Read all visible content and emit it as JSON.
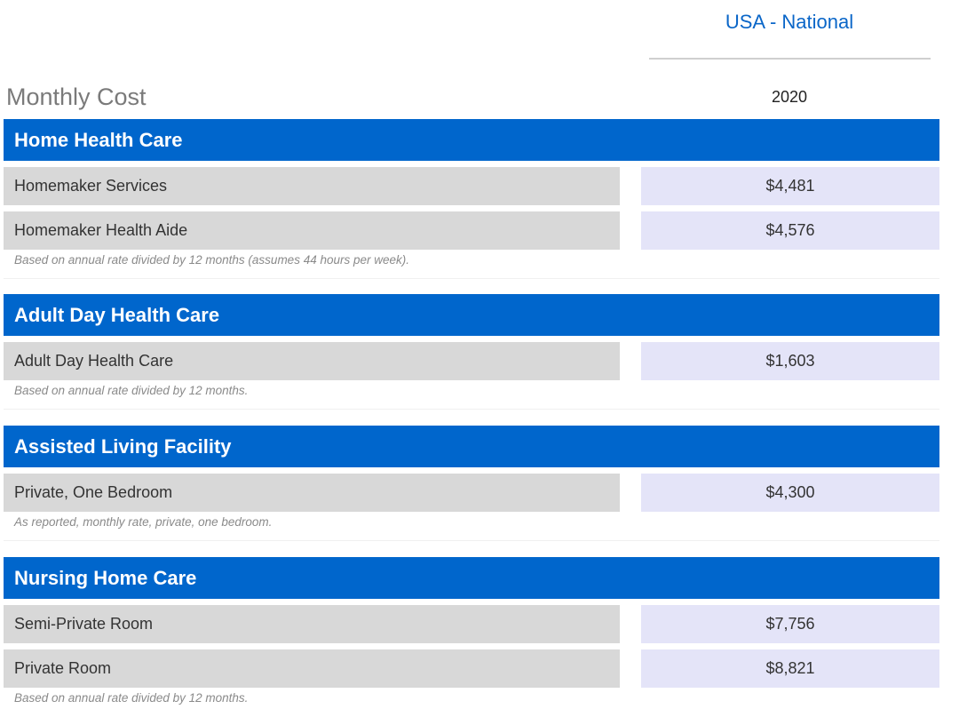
{
  "header": {
    "region": "USA - National",
    "title": "Monthly Cost",
    "year": "2020"
  },
  "sections": [
    {
      "title": "Home Health Care",
      "rows": [
        {
          "label": "Homemaker Services",
          "value": "$4,481"
        },
        {
          "label": "Homemaker Health Aide",
          "value": "$4,576"
        }
      ],
      "note": "Based on annual rate divided by 12 months (assumes 44 hours per week)."
    },
    {
      "title": "Adult Day Health Care",
      "rows": [
        {
          "label": "Adult Day Health Care",
          "value": "$1,603"
        }
      ],
      "note": "Based on annual rate divided by 12 months."
    },
    {
      "title": "Assisted Living Facility",
      "rows": [
        {
          "label": "Private, One Bedroom",
          "value": "$4,300"
        }
      ],
      "note": "As reported, monthly rate, private, one bedroom."
    },
    {
      "title": "Nursing Home Care",
      "rows": [
        {
          "label": "Semi-Private Room",
          "value": "$7,756"
        },
        {
          "label": "Private Room",
          "value": "$8,821"
        }
      ],
      "note": "Based on annual rate divided by 12 months."
    }
  ]
}
